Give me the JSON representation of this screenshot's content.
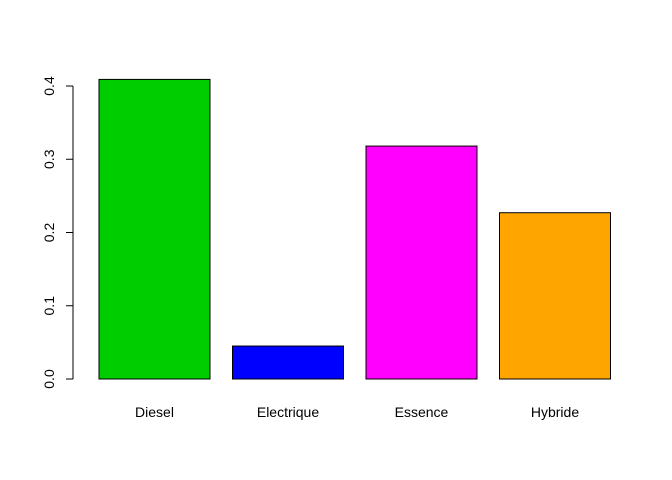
{
  "chart_data": {
    "type": "bar",
    "categories": [
      "Diesel",
      "Electrique",
      "Essence",
      "Hybride"
    ],
    "values": [
      0.409,
      0.045,
      0.318,
      0.227
    ],
    "colors": [
      "#00CD00",
      "#0000FF",
      "#FF00FF",
      "#FFA500"
    ],
    "title": "",
    "xlabel": "",
    "ylabel": "",
    "ylim": [
      0,
      0.4
    ],
    "y_ticks": [
      0.0,
      0.1,
      0.2,
      0.3,
      0.4
    ],
    "y_tick_labels": [
      "0.0",
      "0.1",
      "0.2",
      "0.3",
      "0.4"
    ],
    "grid": false,
    "legend": "none"
  }
}
